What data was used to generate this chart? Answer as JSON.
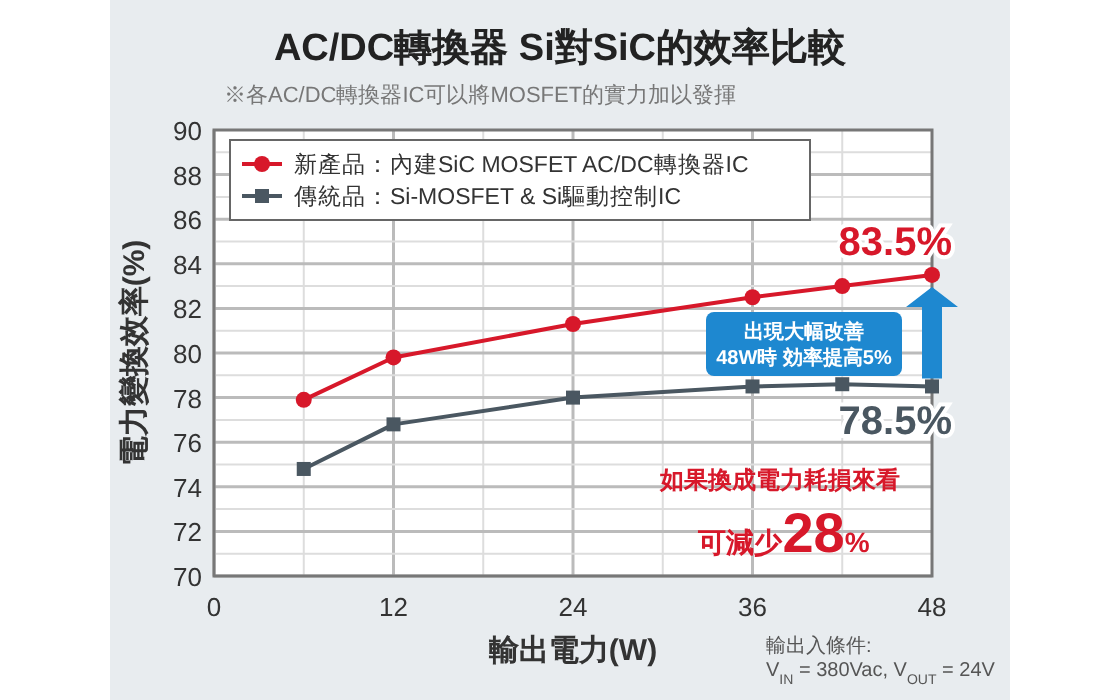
{
  "chart_data": {
    "type": "line",
    "title": "AC/DC轉換器 Si對SiC的效率比較",
    "subtitle": "※各AC/DC轉換器IC可以將MOSFET的實力加以發揮",
    "xlabel": "輸出電力(W)",
    "ylabel": "電力變換效率(%)",
    "x": [
      6,
      12,
      24,
      36,
      42,
      48
    ],
    "series": [
      {
        "name": "新產品：內建SiC MOSFET AC/DC轉換器IC",
        "color": "#d7182a",
        "marker": "circle",
        "values": [
          77.9,
          79.8,
          81.3,
          82.5,
          83.0,
          83.5
        ]
      },
      {
        "name": "傳統品：Si-MOSFET & Si驅動控制IC",
        "color": "#4a5761",
        "marker": "square",
        "values": [
          74.8,
          76.8,
          78.0,
          78.5,
          78.6,
          78.5
        ]
      }
    ],
    "xlim": [
      0,
      48
    ],
    "xticks": [
      0,
      12,
      24,
      36,
      48
    ],
    "ylim": [
      70,
      90
    ],
    "yticks": [
      70,
      72,
      74,
      76,
      78,
      80,
      82,
      84,
      86,
      88,
      90
    ],
    "grid": true,
    "legend": "top left",
    "annotations": [
      {
        "text": "83.5%",
        "x": 48,
        "y": 83.5
      },
      {
        "text": "78.5%",
        "x": 48,
        "y": 78.5
      },
      "出現大幅改善\n48W時 効率提高5%",
      "如果換成電力耗損來看",
      "可減少28%",
      "輸出入條件:\nV$_{IN}$ = 380Vac, V$_{OUT}$ = 24V"
    ]
  }
}
